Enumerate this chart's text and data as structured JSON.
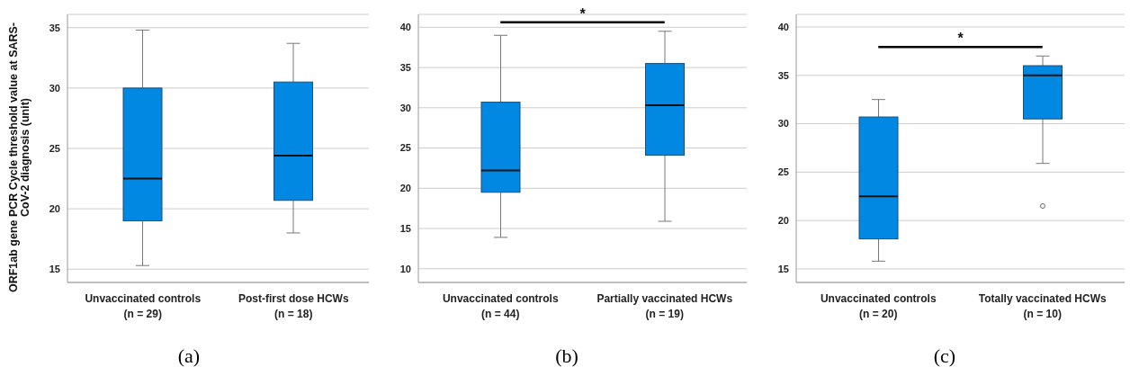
{
  "chart_data": [
    {
      "type": "box",
      "ylabel": "ORF1ab gene PCR Cycle threshold value at SARS-CoV-2 diagnosis (unit)",
      "categories": [
        "Unvaccinated controls\n(n = 29)",
        "Post-first dose HCWs\n(n = 18)"
      ],
      "color": "#0088e2",
      "boxes": [
        {
          "low": 15.3,
          "q1": 19,
          "median": 22.5,
          "q3": 30,
          "high": 34.8
        },
        {
          "low": 18,
          "q1": 20.7,
          "median": 24.4,
          "q3": 30.5,
          "high": 33.7
        }
      ],
      "ylim": [
        13.9,
        36.1
      ],
      "yticks": [
        15,
        20,
        25,
        30,
        35
      ],
      "grid": "y",
      "annotations": [
        "(a)"
      ]
    },
    {
      "type": "box",
      "categories": [
        "Unvaccinated controls\n(n = 44)",
        "Partially vaccinated HCWs\n(n = 19)"
      ],
      "color": "#0088e2",
      "boxes": [
        {
          "low": 13.9,
          "q1": 19.5,
          "median": 22.2,
          "q3": 30.7,
          "high": 39
        },
        {
          "low": 15.9,
          "q1": 24.1,
          "median": 30.3,
          "q3": 35.5,
          "high": 39.5
        }
      ],
      "ylim": [
        8.3,
        41.6
      ],
      "yticks": [
        10,
        15,
        20,
        25,
        30,
        35,
        40
      ],
      "grid": "y",
      "annotations": [
        "*",
        "(b)"
      ]
    },
    {
      "type": "box",
      "categories": [
        "Unvaccinated controls\n(n = 20)",
        "Totally vaccinated HCWs\n(n = 10)"
      ],
      "color": "#0088e2",
      "boxes": [
        {
          "low": 15.8,
          "q1": 18.1,
          "median": 22.5,
          "q3": 30.7,
          "high": 32.5
        },
        {
          "low": 25.9,
          "q1": 30.5,
          "median": 35,
          "q3": 36,
          "high": 37,
          "outliers": [
            21.5
          ]
        }
      ],
      "ylim": [
        13.6,
        41.3
      ],
      "yticks": [
        15,
        20,
        25,
        30,
        35,
        40
      ],
      "grid": "y",
      "annotations": [
        "*",
        "(c)"
      ]
    }
  ]
}
